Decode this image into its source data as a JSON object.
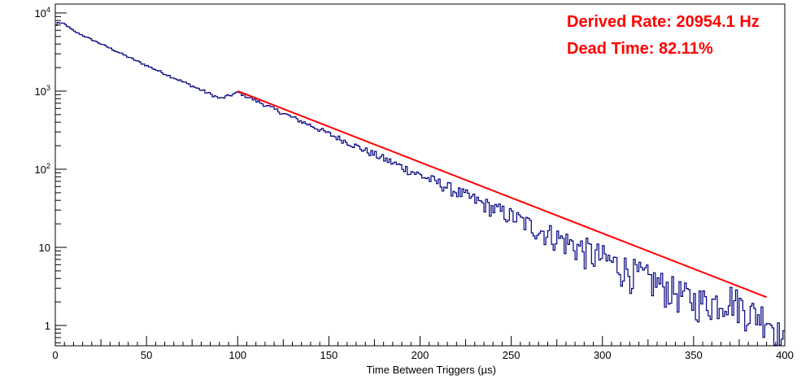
{
  "chart_data": {
    "type": "line",
    "title": "",
    "xlabel": "Time Between Triggers (µs)",
    "ylabel": "",
    "xlim": [
      0,
      400
    ],
    "ylim": [
      0.55,
      13000
    ],
    "yscale": "log",
    "grid": false,
    "x_ticks": [
      "0",
      "50",
      "100",
      "150",
      "200",
      "250",
      "300",
      "350",
      "400"
    ],
    "x_tick_values": [
      0,
      50,
      100,
      150,
      200,
      250,
      300,
      350,
      400
    ],
    "y_ticks": [
      {
        "value": 1,
        "base": "1",
        "exp": ""
      },
      {
        "value": 10,
        "base": "10",
        "exp": ""
      },
      {
        "value": 100,
        "base": "10",
        "exp": "2"
      },
      {
        "value": 1000,
        "base": "10",
        "exp": "3"
      },
      {
        "value": 10000,
        "base": "10",
        "exp": "4"
      }
    ],
    "annotations": [
      "Derived Rate: 20954.1 Hz",
      "Dead Time: 82.11%"
    ],
    "series": [
      {
        "type": "histogram",
        "color": "#000080",
        "bin_width": 1,
        "x": [
          0,
          1,
          2,
          3,
          4,
          5,
          10,
          20,
          30,
          40,
          50,
          60,
          70,
          80,
          90,
          100,
          110,
          120,
          130,
          140,
          150,
          160,
          170,
          180,
          190,
          200,
          210,
          220,
          230,
          240,
          250,
          260,
          270,
          280,
          290,
          300,
          310,
          320,
          330,
          340,
          350,
          360,
          370,
          380,
          390,
          399
        ],
        "values": [
          6900,
          7600,
          7400,
          7300,
          7400,
          7100,
          5800,
          4500,
          3500,
          2700,
          2100,
          1650,
          1300,
          1020,
          800,
          960,
          745,
          580,
          455,
          360,
          280,
          220,
          172,
          135,
          106,
          83,
          66,
          51,
          40,
          31,
          25,
          19,
          15,
          11.8,
          9.2,
          7.2,
          5.7,
          4.4,
          3.5,
          2.7,
          2.1,
          2,
          2.3,
          1.5,
          1.3,
          0.6
        ]
      },
      {
        "type": "fit",
        "color": "#ff0000",
        "x": [
          100,
          390
        ],
        "values": [
          1000,
          2.3
        ]
      }
    ]
  }
}
